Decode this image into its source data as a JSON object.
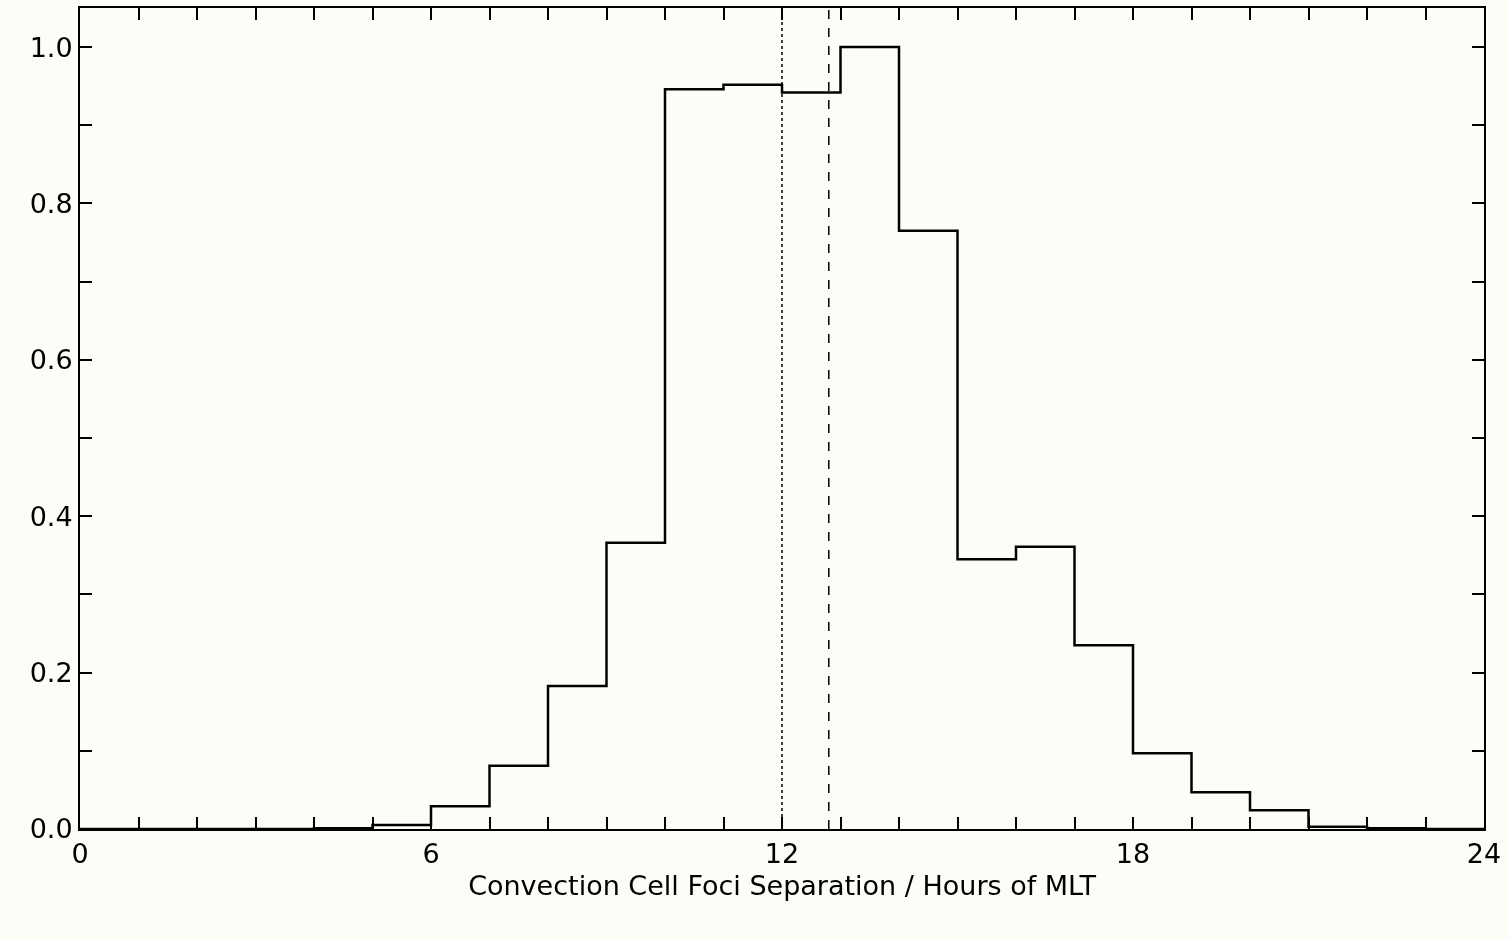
{
  "chart_data": {
    "type": "histogram",
    "xlabel": "Convection Cell Foci Separation / Hours of MLT",
    "color": "#000000",
    "bins": [
      0,
      1,
      2,
      3,
      4,
      5,
      6,
      7,
      8,
      9,
      10,
      11,
      12,
      13,
      14,
      15,
      16,
      17,
      18,
      19,
      20,
      21,
      22,
      23,
      24
    ],
    "values": [
      0,
      0,
      0,
      0,
      0.001,
      0.005,
      0.029,
      0.081,
      0.183,
      0.366,
      0.946,
      0.952,
      0.942,
      1.0,
      0.765,
      0.345,
      0.361,
      0.235,
      0.097,
      0.047,
      0.024,
      0.003,
      0.001,
      0
    ],
    "xlim": [
      0,
      24
    ],
    "ylim": [
      0,
      1.05
    ],
    "xticks": [
      0,
      {
        "value": 1,
        "label": null
      },
      {
        "value": 2,
        "label": null
      },
      {
        "value": 3,
        "label": null
      },
      {
        "value": 4,
        "label": null
      },
      {
        "value": 5,
        "label": null
      },
      6,
      {
        "value": 7,
        "label": null
      },
      {
        "value": 8,
        "label": null
      },
      {
        "value": 9,
        "label": null
      },
      {
        "value": 10,
        "label": null
      },
      {
        "value": 11,
        "label": null
      },
      12,
      {
        "value": 13,
        "label": null
      },
      {
        "value": 14,
        "label": null
      },
      {
        "value": 15,
        "label": null
      },
      {
        "value": 16,
        "label": null
      },
      {
        "value": 17,
        "label": null
      },
      18,
      {
        "value": 19,
        "label": null
      },
      {
        "value": 20,
        "label": null
      },
      {
        "value": 21,
        "label": null
      },
      {
        "value": 22,
        "label": null
      },
      {
        "value": 23,
        "label": null
      },
      24
    ],
    "yticks": [
      {
        "value": 0,
        "label": "0.0"
      },
      {
        "value": 0.1,
        "label": null
      },
      {
        "value": 0.2,
        "label": "0.2"
      },
      {
        "value": 0.3,
        "label": null
      },
      {
        "value": 0.4,
        "label": "0.4"
      },
      {
        "value": 0.5,
        "label": null
      },
      {
        "value": 0.6,
        "label": "0.6"
      },
      {
        "value": 0.7,
        "label": null
      },
      {
        "value": 0.8,
        "label": "0.8"
      },
      {
        "value": 0.9,
        "label": null
      },
      {
        "value": 1.0,
        "label": "1.0"
      }
    ],
    "ref_lines": [
      {
        "axis": "x",
        "value": 12.0,
        "line_style": "dotted"
      },
      {
        "axis": "x",
        "value": 12.8,
        "line_style": "dashed"
      }
    ],
    "grid": false
  }
}
